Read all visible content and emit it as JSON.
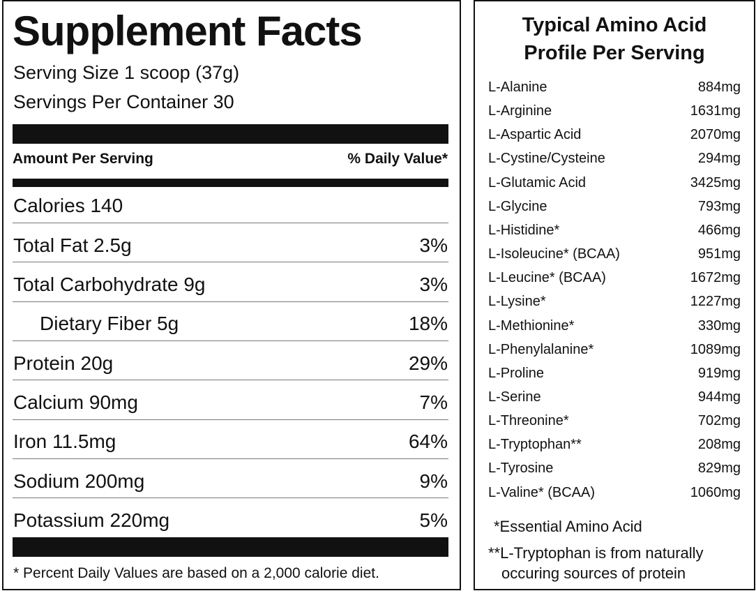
{
  "facts": {
    "title": "Supplement Facts",
    "serving_size": "Serving Size 1 scoop (37g)",
    "servings_per_container": "Servings Per Container 30",
    "amount_header": "Amount Per Serving",
    "dv_header": "% Daily Value*",
    "rows": [
      {
        "label": "Calories 140"
      },
      {
        "label": "Total Fat 2.5g",
        "dv": "3%"
      },
      {
        "label": "Total Carbohydrate 9g",
        "dv": "3%"
      },
      {
        "label": "Dietary Fiber 5g",
        "dv": "18%",
        "indent": true
      },
      {
        "label": "Protein 20g",
        "dv": "29%"
      },
      {
        "label": "Calcium 90mg",
        "dv": "7%"
      },
      {
        "label": "Iron 11.5mg",
        "dv": "64%"
      },
      {
        "label": "Sodium 200mg",
        "dv": "9%"
      },
      {
        "label": "Potassium 220mg",
        "dv": "5%"
      }
    ],
    "footnote": "* Percent Daily Values are based on a 2,000 calorie diet."
  },
  "amino": {
    "title": [
      "Typical Amino Acid",
      "Profile Per Serving"
    ],
    "rows": [
      [
        "L-Alanine",
        "884mg"
      ],
      [
        "L-Arginine",
        "1631mg"
      ],
      [
        "L-Aspartic Acid",
        "2070mg"
      ],
      [
        "L-Cystine/Cysteine",
        "294mg"
      ],
      [
        "L-Glutamic Acid",
        "3425mg"
      ],
      [
        "L-Glycine",
        "793mg"
      ],
      [
        "L-Histidine*",
        "466mg"
      ],
      [
        "L-Isoleucine* (BCAA)",
        "951mg"
      ],
      [
        "L-Leucine* (BCAA)",
        "1672mg"
      ],
      [
        "L-Lysine*",
        "1227mg"
      ],
      [
        "L-Methionine*",
        "330mg"
      ],
      [
        "L-Phenylalanine*",
        "1089mg"
      ],
      [
        "L-Proline",
        "919mg"
      ],
      [
        "L-Serine",
        "944mg"
      ],
      [
        "L-Threonine*",
        "702mg"
      ],
      [
        "L-Tryptophan**",
        "208mg"
      ],
      [
        "L-Tyrosine",
        "829mg"
      ],
      [
        "L-Valine* (BCAA)",
        "1060mg"
      ]
    ],
    "notes": [
      "*Essential Amino Acid",
      "**L-Tryptophan is from naturally",
      "occuring sources of protein"
    ]
  }
}
